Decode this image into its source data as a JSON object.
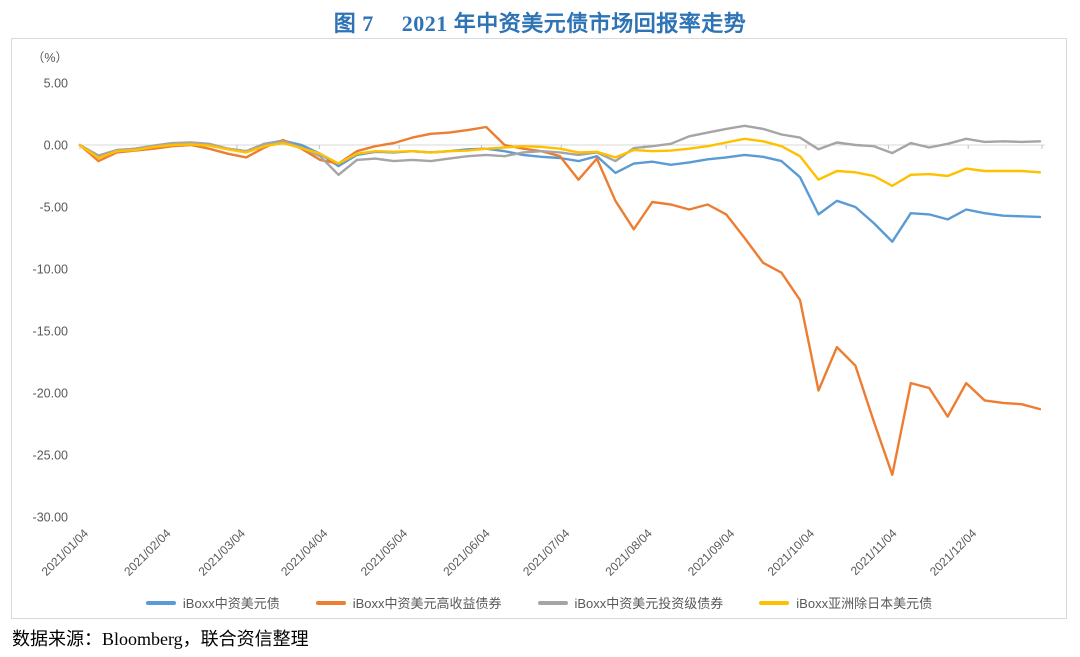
{
  "page": {
    "title_prefix": "图 7",
    "title_main": "2021 年中资美元债市场回报率走势",
    "source_note": "数据来源：Bloomberg，联合资信整理"
  },
  "colors": {
    "title": "#2E74B5",
    "axis_text": "#595959",
    "grid_line": "#D9D9D9",
    "tick_line": "#BFBFBF",
    "chart_border": "#D9D9D9",
    "background": "#FFFFFF"
  },
  "chart_data": {
    "type": "line",
    "title": "2021 年中资美元债市场回报率走势",
    "unit_label": "（%）",
    "ylabel": "",
    "xlabel": "",
    "ylim": [
      -30,
      5
    ],
    "y_ticks": [
      5,
      0,
      -5,
      -10,
      -15,
      -20,
      -25,
      -30
    ],
    "y_tick_labels": [
      "5.00",
      "0.00",
      "-5.00",
      "-10.00",
      "-15.00",
      "-20.00",
      "-25.00",
      "-30.00"
    ],
    "x_tick_labels": [
      "2021/01/04",
      "2021/02/04",
      "2021/03/04",
      "2021/04/04",
      "2021/05/04",
      "2021/06/04",
      "2021/07/04",
      "2021/08/04",
      "2021/09/04",
      "2021/10/04",
      "2021/11/04",
      "2021/12/04"
    ],
    "x_tick_day_offsets": [
      0,
      31,
      59,
      90,
      120,
      151,
      181,
      212,
      243,
      273,
      304,
      334
    ],
    "x_total_days": 361,
    "x_range_note": "weekly samples from 2021/01/04 to 2021/12/31",
    "grid": "zero-line-only",
    "legend_position": "bottom",
    "series": [
      {
        "name": "iBoxx中资美元债",
        "color": "#5B9BD5",
        "values": [
          0.0,
          -0.9,
          -0.45,
          -0.3,
          -0.1,
          0.1,
          0.15,
          0.05,
          -0.3,
          -0.5,
          0.1,
          0.35,
          0.0,
          -0.7,
          -1.7,
          -0.8,
          -0.55,
          -0.6,
          -0.5,
          -0.6,
          -0.5,
          -0.35,
          -0.3,
          -0.5,
          -0.8,
          -0.95,
          -1.05,
          -1.3,
          -0.9,
          -2.25,
          -1.5,
          -1.35,
          -1.6,
          -1.4,
          -1.15,
          -1.0,
          -0.8,
          -0.95,
          -1.3,
          -2.6,
          -5.6,
          -4.5,
          -5.0,
          -6.3,
          -7.8,
          -5.5,
          -5.6,
          -6.0,
          -5.2,
          -5.5,
          -5.7,
          -5.75,
          -5.8
        ]
      },
      {
        "name": "iBoxx中资美元高收益债券",
        "color": "#ED7D31",
        "values": [
          0.0,
          -1.3,
          -0.6,
          -0.45,
          -0.3,
          -0.1,
          0.0,
          -0.3,
          -0.7,
          -1.0,
          -0.2,
          0.4,
          -0.3,
          -1.2,
          -1.5,
          -0.5,
          -0.1,
          0.15,
          0.6,
          0.9,
          1.0,
          1.2,
          1.45,
          0.0,
          -0.3,
          -0.5,
          -0.9,
          -2.8,
          -1.1,
          -4.5,
          -6.8,
          -4.6,
          -4.8,
          -5.2,
          -4.8,
          -5.6,
          -7.5,
          -9.5,
          -10.3,
          -12.5,
          -19.8,
          -16.3,
          -17.8,
          -22.3,
          -26.6,
          -19.2,
          -19.6,
          -21.9,
          -19.2,
          -20.6,
          -20.8,
          -20.9,
          -21.3
        ]
      },
      {
        "name": "iBoxx中资美元投资级债券",
        "color": "#A5A5A5",
        "values": [
          0.0,
          -0.85,
          -0.4,
          -0.3,
          -0.05,
          0.15,
          0.2,
          0.1,
          -0.3,
          -0.5,
          0.1,
          0.3,
          -0.2,
          -0.9,
          -2.4,
          -1.2,
          -1.1,
          -1.3,
          -1.2,
          -1.3,
          -1.1,
          -0.9,
          -0.8,
          -0.9,
          -0.6,
          -0.5,
          -0.6,
          -0.8,
          -0.6,
          -1.3,
          -0.25,
          -0.1,
          0.1,
          0.7,
          1.0,
          1.3,
          1.55,
          1.3,
          0.85,
          0.6,
          -0.35,
          0.2,
          0.0,
          -0.1,
          -0.65,
          0.15,
          -0.2,
          0.1,
          0.5,
          0.25,
          0.3,
          0.25,
          0.3
        ]
      },
      {
        "name": "iBoxx亚洲除日本美元债",
        "color": "#FFC000",
        "values": [
          0.0,
          -1.05,
          -0.5,
          -0.4,
          -0.15,
          0.0,
          0.05,
          -0.05,
          -0.35,
          -0.6,
          -0.1,
          0.15,
          -0.25,
          -0.7,
          -1.5,
          -0.7,
          -0.5,
          -0.55,
          -0.5,
          -0.6,
          -0.5,
          -0.45,
          -0.3,
          -0.2,
          -0.1,
          -0.15,
          -0.3,
          -0.6,
          -0.55,
          -1.0,
          -0.4,
          -0.5,
          -0.45,
          -0.3,
          -0.1,
          0.2,
          0.5,
          0.3,
          -0.1,
          -0.9,
          -2.8,
          -2.1,
          -2.2,
          -2.5,
          -3.3,
          -2.4,
          -2.35,
          -2.5,
          -1.9,
          -2.1,
          -2.1,
          -2.1,
          -2.2
        ]
      }
    ]
  }
}
